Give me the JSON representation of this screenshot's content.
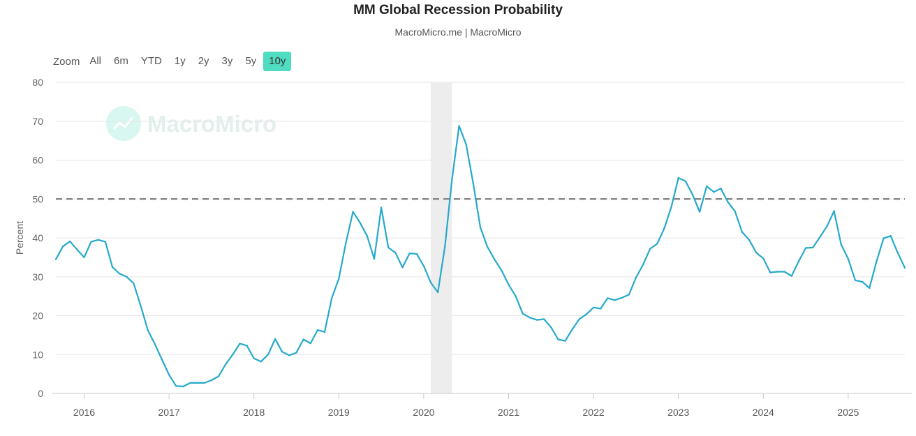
{
  "title": "MM Global Recession Probability",
  "subtitle": "MacroMicro.me | MacroMicro",
  "watermark": "MacroMicro",
  "range_selector": {
    "zoom_label": "Zoom",
    "buttons": [
      "All",
      "6m",
      "YTD",
      "1y",
      "2y",
      "3y",
      "5y",
      "10y"
    ],
    "active": "10y",
    "active_color": "#4fdcc0"
  },
  "chart_data": {
    "type": "line",
    "ylabel": "Percent",
    "ylim": [
      0,
      80
    ],
    "yticks": [
      0,
      10,
      20,
      30,
      40,
      50,
      60,
      70,
      80
    ],
    "xlim": [
      2015.667,
      2025.667
    ],
    "xticks": [
      2016,
      2017,
      2018,
      2019,
      2020,
      2021,
      2022,
      2023,
      2024,
      2025
    ],
    "xtick_labels": [
      "2016",
      "2017",
      "2018",
      "2019",
      "2020",
      "2021",
      "2022",
      "2023",
      "2024",
      "2025"
    ],
    "threshold": 50,
    "recession_band": [
      2020.083,
      2020.333
    ],
    "grid": true,
    "line_color": "#26a9cc",
    "series": [
      {
        "x": [
          2015.667,
          2015.75,
          2015.833,
          2015.917,
          2016.0,
          2016.083,
          2016.167,
          2016.25,
          2016.333,
          2016.417,
          2016.5,
          2016.583,
          2016.667,
          2016.75,
          2016.833,
          2016.917,
          2017.0,
          2017.083,
          2017.167,
          2017.25,
          2017.333,
          2017.417,
          2017.5,
          2017.583,
          2017.667,
          2017.75,
          2017.833,
          2017.917,
          2018.0,
          2018.083,
          2018.167,
          2018.25,
          2018.333,
          2018.417,
          2018.5,
          2018.583,
          2018.667,
          2018.75,
          2018.833,
          2018.917,
          2019.0,
          2019.083,
          2019.167,
          2019.25,
          2019.333,
          2019.417,
          2019.5,
          2019.583,
          2019.667,
          2019.75,
          2019.833,
          2019.917,
          2020.0,
          2020.083,
          2020.167,
          2020.25,
          2020.333,
          2020.417,
          2020.5,
          2020.583,
          2020.667,
          2020.75,
          2020.833,
          2020.917,
          2021.0,
          2021.083,
          2021.167,
          2021.25,
          2021.333,
          2021.417,
          2021.5,
          2021.583,
          2021.667,
          2021.75,
          2021.833,
          2021.917,
          2022.0,
          2022.083,
          2022.167,
          2022.25,
          2022.333,
          2022.417,
          2022.5,
          2022.583,
          2022.667,
          2022.75,
          2022.833,
          2022.917,
          2023.0,
          2023.083,
          2023.167,
          2023.25,
          2023.333,
          2023.417,
          2023.5,
          2023.583,
          2023.667,
          2023.75,
          2023.833,
          2023.917,
          2024.0,
          2024.083,
          2024.167,
          2024.25,
          2024.333,
          2024.417,
          2024.5,
          2024.583,
          2024.667,
          2024.75,
          2024.833,
          2024.917,
          2025.0,
          2025.083,
          2025.167,
          2025.25,
          2025.333,
          2025.417,
          2025.5,
          2025.583,
          2025.667
        ],
        "values": [
          34.5,
          37.8,
          39.1,
          37.0,
          35.0,
          39.0,
          39.5,
          39.0,
          32.5,
          30.8,
          30.0,
          28.3,
          22.5,
          16.3,
          12.7,
          8.7,
          4.8,
          1.9,
          1.8,
          2.7,
          2.7,
          2.7,
          3.4,
          4.4,
          7.5,
          10.0,
          12.8,
          12.3,
          9.0,
          8.2,
          10.0,
          14.0,
          10.7,
          9.8,
          10.5,
          13.9,
          12.9,
          16.3,
          15.8,
          24.5,
          29.5,
          38.7,
          46.7,
          43.9,
          40.5,
          34.6,
          47.8,
          37.5,
          36.2,
          32.4,
          36.0,
          35.9,
          32.8,
          28.5,
          26.0,
          37.8,
          55.0,
          68.8,
          64.0,
          54.0,
          42.7,
          37.7,
          34.5,
          31.6,
          28.0,
          25.0,
          20.5,
          19.5,
          18.9,
          19.1,
          17.0,
          13.9,
          13.5,
          16.5,
          19.1,
          20.4,
          22.1,
          21.8,
          24.5,
          24.0,
          24.6,
          25.4,
          29.8,
          33.1,
          37.2,
          38.5,
          42.4,
          48.0,
          55.4,
          54.6,
          51.1,
          46.7,
          53.3,
          51.8,
          52.7,
          49.2,
          46.8,
          41.5,
          39.5,
          36.2,
          34.7,
          31.1,
          31.3,
          31.3,
          30.2,
          34.0,
          37.4,
          37.5,
          40.2,
          43.0,
          46.9,
          38.3,
          34.6,
          29.1,
          28.7,
          27.1,
          33.9,
          39.9,
          40.5,
          36.2,
          32.3
        ]
      }
    ]
  }
}
